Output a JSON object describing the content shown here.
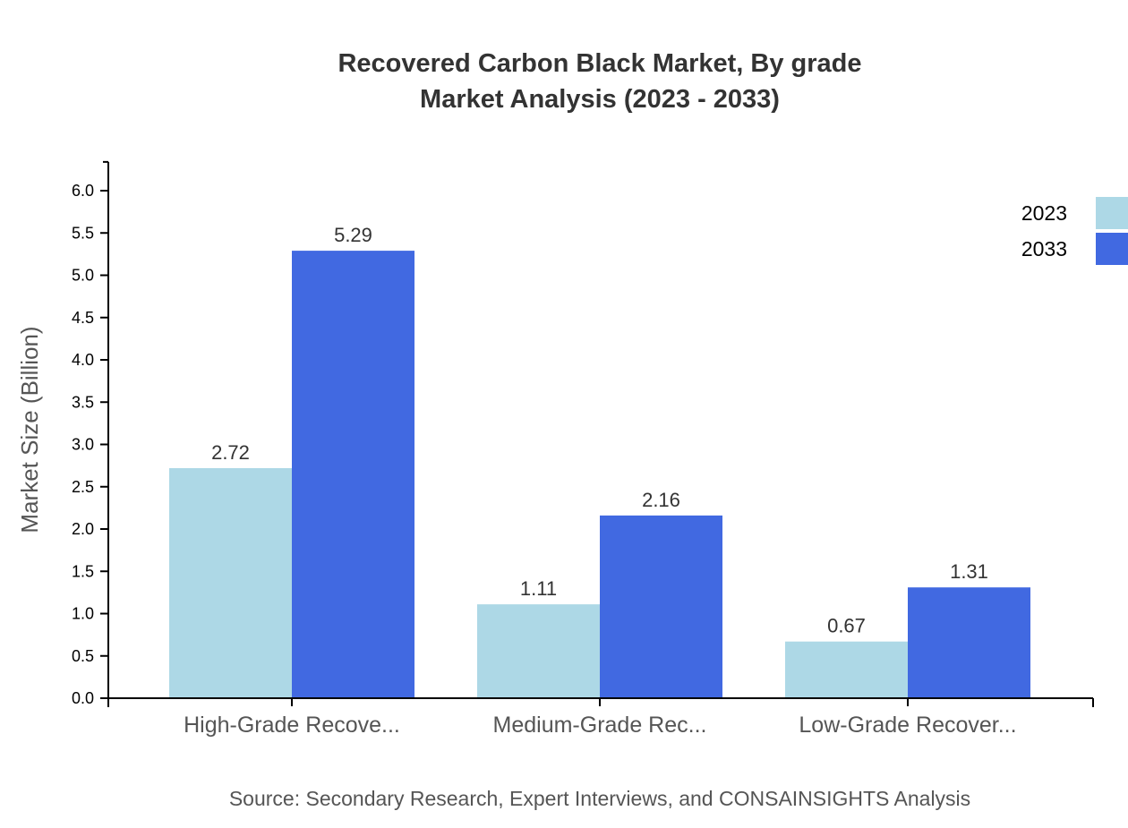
{
  "chart_data": {
    "type": "bar",
    "title": "Recovered Carbon Black Market, By grade",
    "subtitle": "Market Analysis (2023 - 2033)",
    "xlabel": "",
    "ylabel": "Market Size (Billion)",
    "source": "Source: Secondary Research, Expert Interviews, and CONSAINSIGHTS Analysis",
    "categories": [
      "High-Grade Recove...",
      "Medium-Grade Rec...",
      "Low-Grade Recover..."
    ],
    "series": [
      {
        "name": "2023",
        "color": "#add8e6",
        "values": [
          2.72,
          1.11,
          0.67
        ]
      },
      {
        "name": "2033",
        "color": "#4169e1",
        "values": [
          5.29,
          2.16,
          1.31
        ]
      }
    ],
    "ylim": [
      0,
      6.34
    ],
    "yticks": [
      "0.0",
      "0.5",
      "1.0",
      "1.5",
      "2.0",
      "2.5",
      "3.0",
      "3.5",
      "4.0",
      "4.5",
      "5.0",
      "5.5",
      "6.0"
    ],
    "grid": false,
    "legend_position": "top-right"
  }
}
